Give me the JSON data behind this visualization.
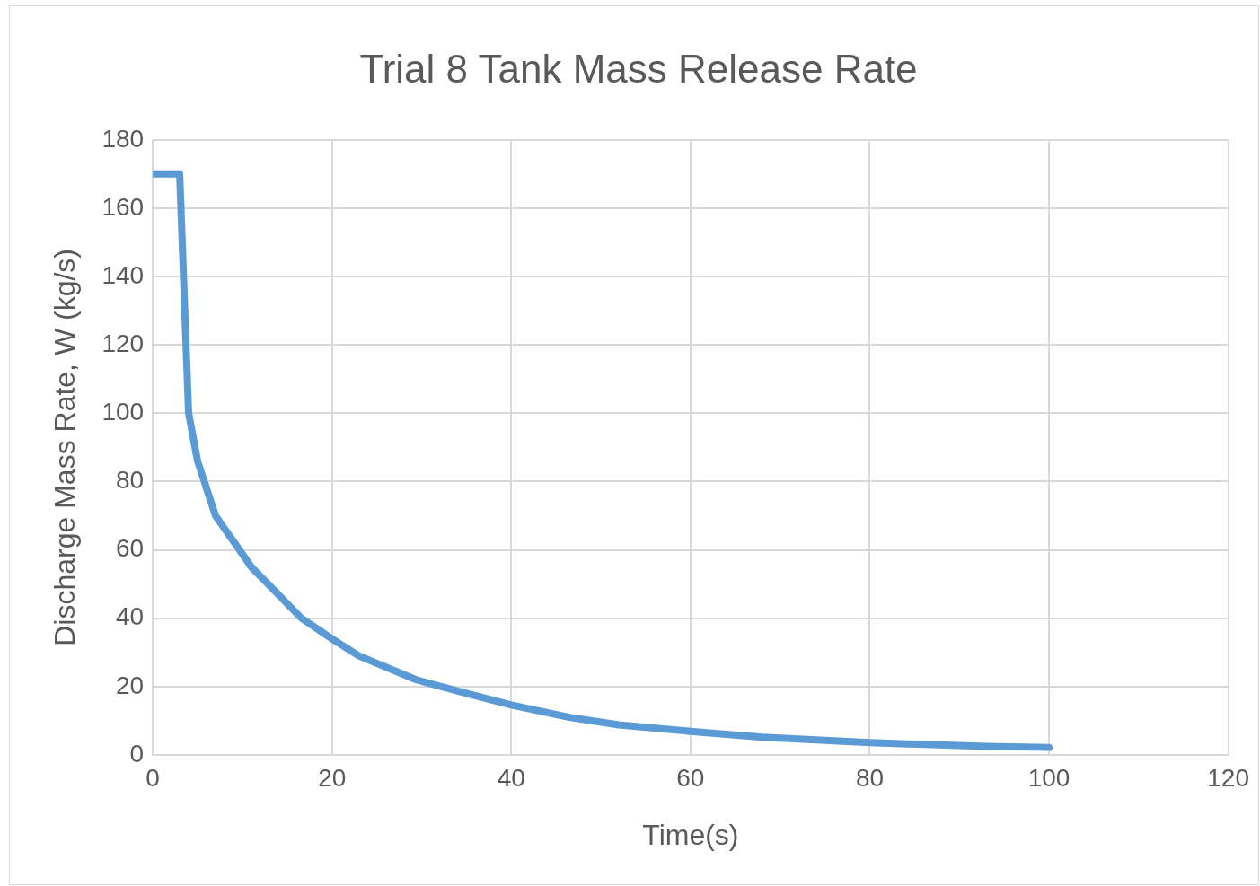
{
  "chart_data": {
    "type": "line",
    "title": "Trial 8 Tank Mass Release Rate",
    "xlabel": "Time(s)",
    "ylabel": "Discharge Mass Rate, W (kg/s)",
    "x": [
      0,
      3,
      4,
      5,
      7,
      11,
      16.6,
      20,
      23,
      29.4,
      35,
      40,
      46.5,
      52,
      60,
      68,
      80,
      93,
      100
    ],
    "series": [
      {
        "color": "#5b9bd5",
        "values": [
          170,
          170,
          100,
          86,
          70,
          55,
          40,
          34,
          29,
          22,
          18,
          14.6,
          11,
          8.8,
          6.9,
          5.2,
          3.6,
          2.5,
          2.2
        ]
      }
    ],
    "xlim": [
      0,
      120
    ],
    "xticks": [
      0,
      20,
      40,
      60,
      80,
      100,
      120
    ],
    "ylim": [
      0,
      180
    ],
    "yticks": [
      0,
      20,
      40,
      60,
      80,
      100,
      120,
      140,
      160,
      180
    ],
    "grid": true,
    "legend": false,
    "marker": "none",
    "line_style": "solid"
  }
}
